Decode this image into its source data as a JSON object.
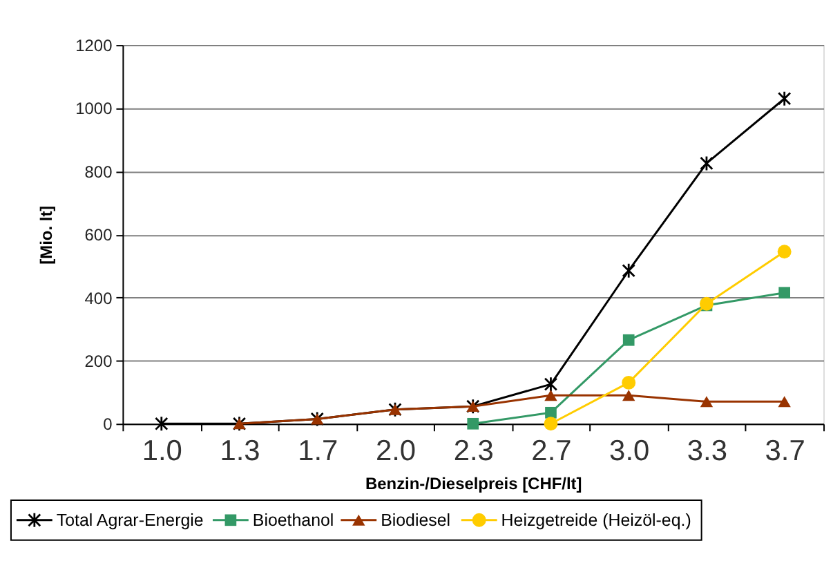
{
  "chart_data": {
    "type": "line",
    "xlabel": "Benzin-/Dieselpreis [CHF/lt]",
    "ylabel": "[Mio. lt]",
    "categories": [
      "1.0",
      "1.3",
      "1.7",
      "2.0",
      "2.3",
      "2.7",
      "3.0",
      "3.3",
      "3.7"
    ],
    "series": [
      {
        "name": "Total Agrar-Energie",
        "color": "#000000",
        "marker": "cross",
        "values": [
          0,
          0,
          15,
          45,
          55,
          125,
          485,
          825,
          1030
        ]
      },
      {
        "name": "Bioethanol",
        "color": "#339966",
        "marker": "square",
        "values": [
          null,
          null,
          null,
          null,
          0,
          35,
          265,
          375,
          415
        ]
      },
      {
        "name": "Biodiesel",
        "color": "#993300",
        "marker": "triangle",
        "values": [
          null,
          0,
          15,
          45,
          55,
          90,
          90,
          70,
          70
        ]
      },
      {
        "name": "Heizgetreide (Heizöl-eq.)",
        "color": "#ffcc00",
        "marker": "circle",
        "values": [
          null,
          null,
          null,
          null,
          null,
          0,
          130,
          380,
          545
        ]
      }
    ],
    "ylim": [
      0,
      1200
    ],
    "yticks": [
      0,
      200,
      400,
      600,
      800,
      1000,
      1200
    ],
    "grid": "y",
    "legend": "bottom",
    "line_style": "solid"
  }
}
